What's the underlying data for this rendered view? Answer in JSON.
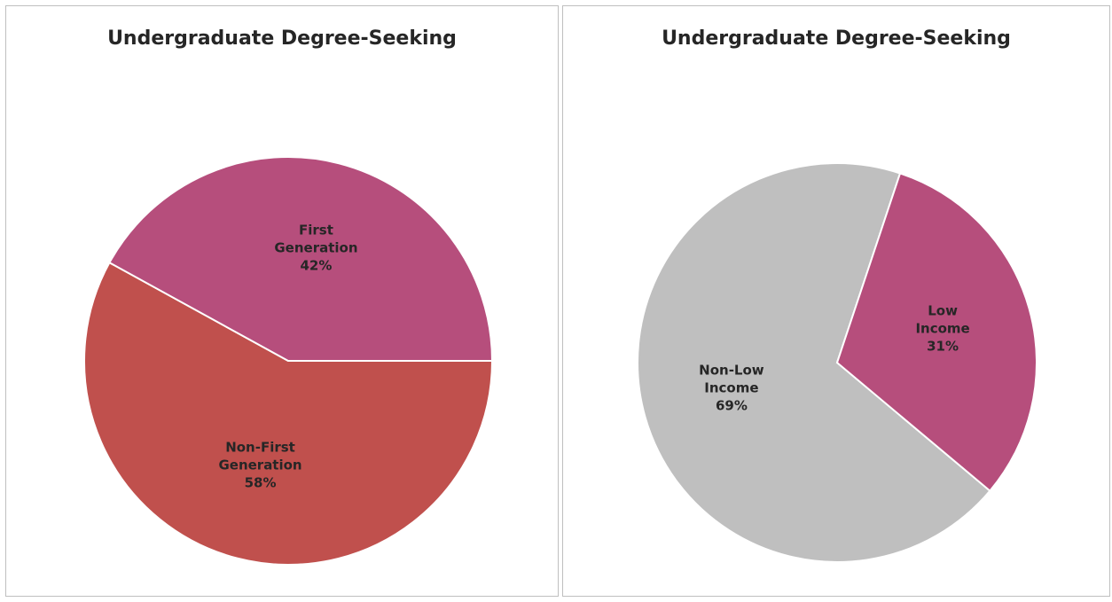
{
  "chart_data": [
    {
      "type": "pie",
      "title": "Undergraduate Degree-Seeking",
      "subtitle": "",
      "slices": [
        {
          "label": "Non-First Generation",
          "value": 58,
          "value_label": "58%",
          "color": "#c0504d"
        },
        {
          "label": "First Generation",
          "value": 42,
          "value_label": "42%",
          "color": "#b64e7c"
        }
      ]
    },
    {
      "type": "pie",
      "title": "Undergraduate Degree-Seeking",
      "subtitle": "",
      "slices": [
        {
          "label": "Non-Low Income",
          "value": 69,
          "value_label": "69%",
          "color": "#bfbfbf"
        },
        {
          "label": "Low Income",
          "value": 31,
          "value_label": "31%",
          "color": "#b64e7c"
        }
      ]
    }
  ]
}
